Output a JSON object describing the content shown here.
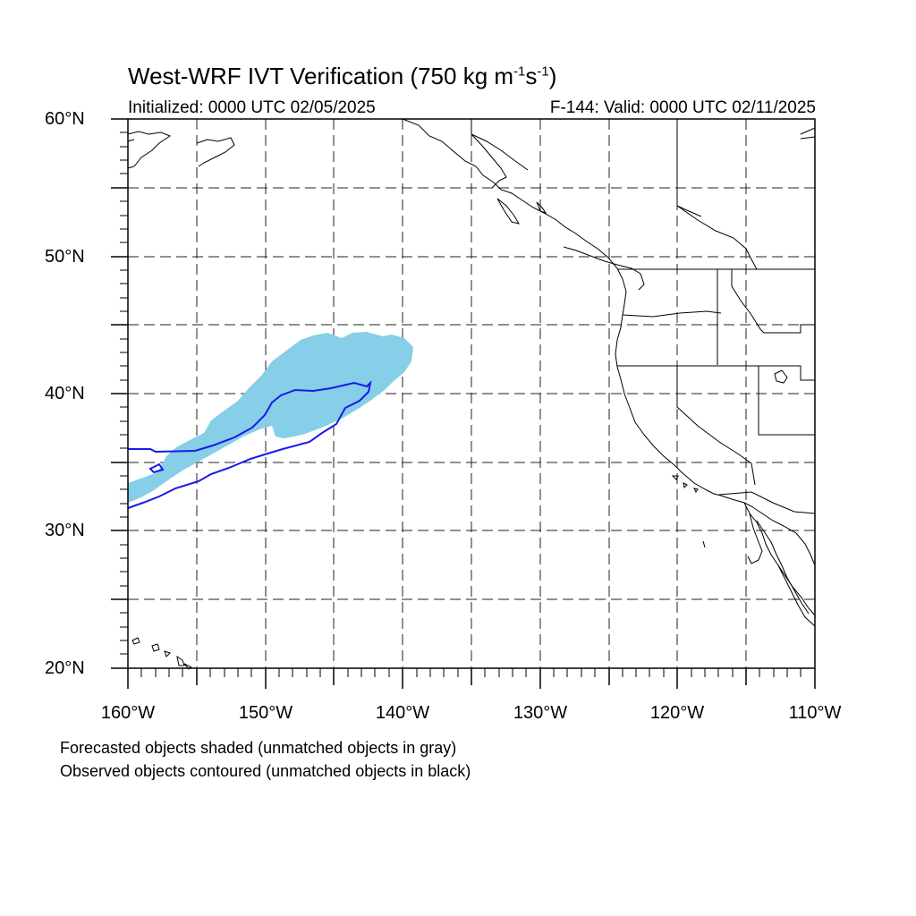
{
  "title": {
    "prefix": "West-WRF IVT Verification (750 kg m",
    "sup1": "-1",
    "mid": "s",
    "sup2": "-1",
    "suffix": ")"
  },
  "subtitle_left": "Initialized: 0000 UTC 02/05/2025",
  "subtitle_right": "F-144: Valid: 0000 UTC 02/11/2025",
  "lat_labels": [
    "60°N",
    "50°N",
    "40°N",
    "30°N",
    "20°N"
  ],
  "lon_labels": [
    "160°W",
    "150°W",
    "140°W",
    "130°W",
    "120°W",
    "110°W"
  ],
  "footnotes": [
    "Forecasted objects shaded (unmatched objects in gray)",
    "Observed objects contoured (unmatched objects in black)"
  ],
  "map": {
    "lon_range": [
      -160,
      -110
    ],
    "lat_range": [
      20,
      60
    ],
    "grid_spacing_deg": 5,
    "forecast_fill_color": "#87CEE8",
    "observed_contour_color": "#1a1ae6",
    "coast_color": "#000000"
  }
}
